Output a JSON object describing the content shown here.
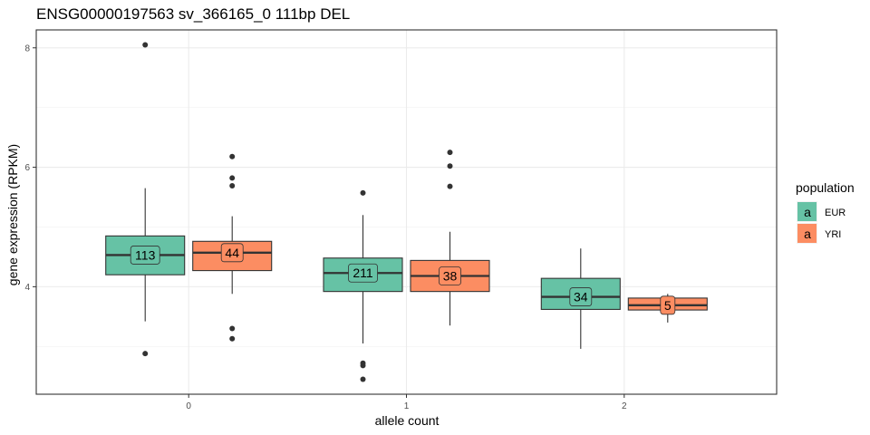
{
  "chart_data": {
    "type": "boxplot",
    "title": "ENSG00000197563 sv_366165_0 111bp DEL",
    "xlabel": "allele count",
    "ylabel": "gene expression (RPKM)",
    "ylim": [
      2.2,
      8.3
    ],
    "y_ticks": [
      4,
      6,
      8
    ],
    "categories": [
      "0",
      "1",
      "2"
    ],
    "grid": true,
    "legend": {
      "title": "population",
      "placement": "right",
      "key_glyph": "a",
      "entries": [
        {
          "name": "EUR",
          "color": "#66C2A5"
        },
        {
          "name": "YRI",
          "color": "#FC8D62"
        }
      ]
    },
    "series": [
      {
        "name": "EUR",
        "color": "#66C2A5",
        "boxes": [
          {
            "category": "0",
            "lower_whisker": 3.42,
            "q1": 4.2,
            "median": 4.53,
            "q3": 4.85,
            "upper_whisker": 5.65,
            "n": "113",
            "outliers": [
              8.05,
              2.88
            ]
          },
          {
            "category": "1",
            "lower_whisker": 3.05,
            "q1": 3.92,
            "median": 4.23,
            "q3": 4.48,
            "upper_whisker": 5.2,
            "n": "211",
            "outliers": [
              5.57,
              2.72,
              2.68,
              2.45
            ]
          },
          {
            "category": "2",
            "lower_whisker": 2.96,
            "q1": 3.62,
            "median": 3.83,
            "q3": 4.14,
            "upper_whisker": 4.64,
            "n": "34",
            "outliers": []
          }
        ]
      },
      {
        "name": "YRI",
        "color": "#FC8D62",
        "boxes": [
          {
            "category": "0",
            "lower_whisker": 3.88,
            "q1": 4.27,
            "median": 4.57,
            "q3": 4.76,
            "upper_whisker": 5.18,
            "n": "44",
            "outliers": [
              6.18,
              5.82,
              5.69,
              3.3,
              3.13
            ]
          },
          {
            "category": "1",
            "lower_whisker": 3.35,
            "q1": 3.92,
            "median": 4.18,
            "q3": 4.44,
            "upper_whisker": 4.92,
            "n": "38",
            "outliers": [
              6.25,
              6.02,
              5.68
            ]
          },
          {
            "category": "2",
            "lower_whisker": 3.4,
            "q1": 3.61,
            "median": 3.69,
            "q3": 3.81,
            "upper_whisker": 3.88,
            "n": "5",
            "outliers": []
          }
        ]
      }
    ]
  }
}
